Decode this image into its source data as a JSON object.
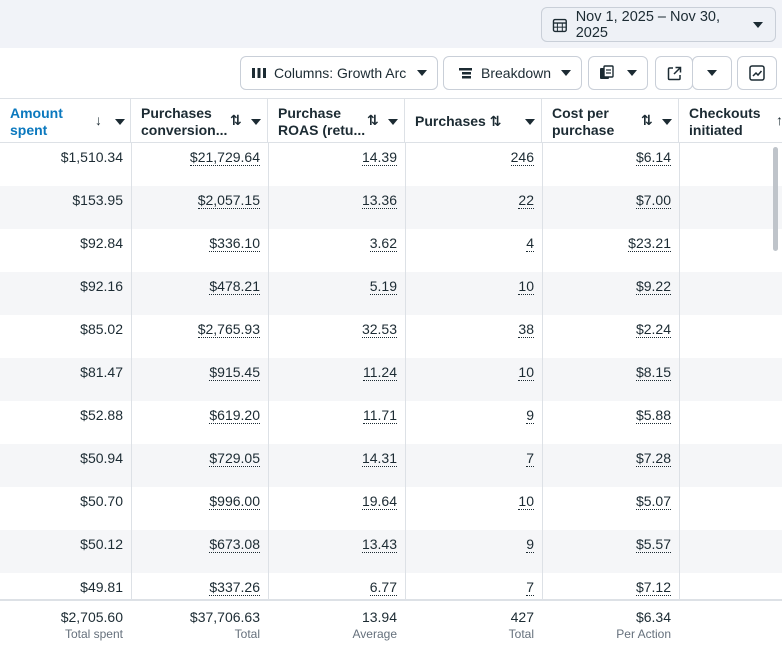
{
  "date_range": {
    "label": "Nov 1, 2025 – Nov 30, 2025",
    "icon": "calendar-icon"
  },
  "toolbar": {
    "columns_label": "Columns: Growth Arc",
    "breakdown_label": "Breakdown"
  },
  "columns": [
    {
      "label": "Amount\nspent",
      "sort": "↓",
      "sorted": true
    },
    {
      "label": "Purchases\nconversion...",
      "sort": "⇅",
      "sorted": false
    },
    {
      "label": "Purchase\nROAS (retu...",
      "sort": "⇅",
      "sorted": false
    },
    {
      "label": "Purchases ⇅",
      "sort": "",
      "sorted": false
    },
    {
      "label": "Cost per\npurchase",
      "sort": "⇅",
      "sorted": false
    },
    {
      "label": "Checkouts\ninitiated",
      "sort": "↑",
      "sorted": false
    }
  ],
  "rows": [
    [
      "$1,510.34",
      "$21,729.64",
      "14.39",
      "246",
      "$6.14"
    ],
    [
      "$153.95",
      "$2,057.15",
      "13.36",
      "22",
      "$7.00"
    ],
    [
      "$92.84",
      "$336.10",
      "3.62",
      "4",
      "$23.21"
    ],
    [
      "$92.16",
      "$478.21",
      "5.19",
      "10",
      "$9.22"
    ],
    [
      "$85.02",
      "$2,765.93",
      "32.53",
      "38",
      "$2.24"
    ],
    [
      "$81.47",
      "$915.45",
      "11.24",
      "10",
      "$8.15"
    ],
    [
      "$52.88",
      "$619.20",
      "11.71",
      "9",
      "$5.88"
    ],
    [
      "$50.94",
      "$729.05",
      "14.31",
      "7",
      "$7.28"
    ],
    [
      "$50.70",
      "$996.00",
      "19.64",
      "10",
      "$5.07"
    ],
    [
      "$50.12",
      "$673.08",
      "13.43",
      "9",
      "$5.57"
    ],
    [
      "$49.81",
      "$337.26",
      "6.77",
      "7",
      "$7.12"
    ]
  ],
  "totals": [
    {
      "value": "$2,705.60",
      "sub": "Total spent"
    },
    {
      "value": "$37,706.63",
      "sub": "Total"
    },
    {
      "value": "13.94",
      "sub": "Average"
    },
    {
      "value": "427",
      "sub": "Total"
    },
    {
      "value": "$6.34",
      "sub": "Per Action"
    }
  ]
}
